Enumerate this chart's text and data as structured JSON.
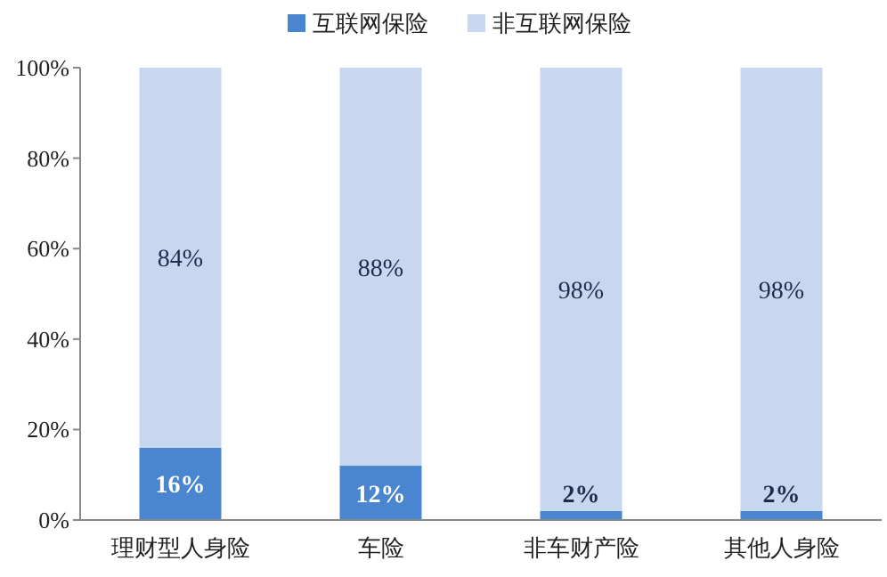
{
  "chart_data": {
    "type": "bar",
    "stacked": true,
    "categories": [
      "理财型人身险",
      "车险",
      "非车财产险",
      "其他人身险"
    ],
    "series": [
      {
        "name": "互联网保险",
        "color": "#4a86d0",
        "values": [
          16,
          12,
          2,
          2
        ],
        "value_labels": [
          "16%",
          "12%",
          "2%",
          "2%"
        ]
      },
      {
        "name": "非互联网保险",
        "color": "#c6d7ef",
        "values": [
          84,
          88,
          98,
          98
        ],
        "value_labels": [
          "84%",
          "88%",
          "98%",
          "98%"
        ]
      }
    ],
    "ylim": [
      0,
      100
    ],
    "yticks": [
      {
        "value": 0,
        "label": "0%"
      },
      {
        "value": 20,
        "label": "20%"
      },
      {
        "value": 40,
        "label": "40%"
      },
      {
        "value": 60,
        "label": "60%"
      },
      {
        "value": 80,
        "label": "80%"
      },
      {
        "value": 100,
        "label": "100%"
      }
    ],
    "legend": "top",
    "grid": false
  }
}
